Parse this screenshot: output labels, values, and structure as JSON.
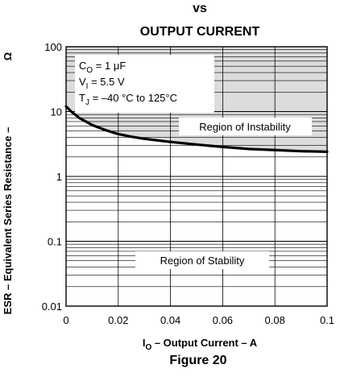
{
  "chart_data": {
    "type": "line",
    "title_lines": [
      "vs",
      "OUTPUT CURRENT"
    ],
    "figure_label": "Figure 20",
    "xlabel": {
      "main": "I",
      "sub": "O",
      "rest": " – Output Current – A"
    },
    "ylabel": "ESR – Equivalent Series Resistance –",
    "yunit": "Ω",
    "x_scale": "linear",
    "y_scale": "log",
    "xlim": [
      0,
      0.1
    ],
    "ylim": [
      0.01,
      100
    ],
    "x_ticks": [
      0,
      0.02,
      0.04,
      0.06,
      0.08,
      0.1
    ],
    "x_tick_labels": [
      "0",
      "0.02",
      "0.04",
      "0.06",
      "0.08",
      "0.1"
    ],
    "y_ticks": [
      0.01,
      0.1,
      1,
      10,
      100
    ],
    "y_tick_labels": [
      "0.01",
      "0.1",
      "1",
      "10",
      "100"
    ],
    "grid": true,
    "conditions": [
      {
        "main": "C",
        "sub": "O",
        "rest": " = 1 μF"
      },
      {
        "main": "V",
        "sub": "I",
        "rest": " = 5.5 V"
      },
      {
        "main": "T",
        "sub": "J",
        "rest": " = –40 °C to 125°C"
      }
    ],
    "regions": [
      {
        "label": "Region of Instability",
        "shaded": true
      },
      {
        "label": "Region of Stability",
        "shaded": false
      }
    ],
    "series": [
      {
        "x": [
          0,
          0.002,
          0.005,
          0.01,
          0.015,
          0.02,
          0.025,
          0.03,
          0.04,
          0.05,
          0.06,
          0.07,
          0.08,
          0.09,
          0.1
        ],
        "y": [
          12,
          10,
          8,
          6.2,
          5.2,
          4.5,
          4.1,
          3.8,
          3.4,
          3.1,
          2.85,
          2.65,
          2.55,
          2.45,
          2.4
        ]
      }
    ],
    "colors": {
      "shade": "#dcdcdc",
      "line": "#000000",
      "grid": "#000000"
    }
  }
}
